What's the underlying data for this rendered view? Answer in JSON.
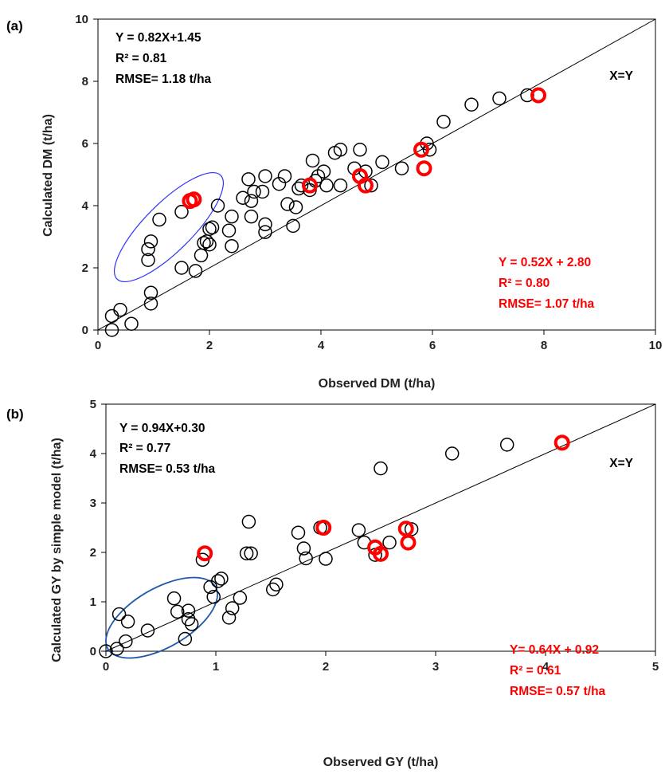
{
  "chart_data": [
    {
      "type": "scatter",
      "panel_label": "(a)",
      "xlabel": "Observed DM (t/ha)",
      "ylabel": "Calculated DM (t/ha)",
      "xlim": [
        0,
        10
      ],
      "ylim": [
        0,
        10
      ],
      "xticks": [
        0,
        2,
        4,
        6,
        8,
        10
      ],
      "yticks": [
        0,
        2,
        4,
        6,
        8,
        10
      ],
      "grid": false,
      "reference_line": {
        "label": "X=Y",
        "slope": 1,
        "intercept": 0
      },
      "annotations": [
        {
          "lines": [
            "Y = 0.82X+1.45",
            "R² = 0.81",
            "RMSE= 1.18 t/ha"
          ],
          "color": "#000000",
          "position": "top-left"
        },
        {
          "lines": [
            "Y = 0.52X + 2.80",
            "R² = 0.80",
            "RMSE= 1.07 t/ha"
          ],
          "color": "#ff0000",
          "position": "bottom-right"
        }
      ],
      "highlight_ellipse": {
        "color": "#3030ff",
        "center": [
          1.27,
          3.3
        ],
        "description_units": "data"
      },
      "series": [
        {
          "color": "#000000",
          "points": [
            [
              0.25,
              0.0
            ],
            [
              0.25,
              0.45
            ],
            [
              0.4,
              0.65
            ],
            [
              0.6,
              0.2
            ],
            [
              0.95,
              0.85
            ],
            [
              0.95,
              1.2
            ],
            [
              0.9,
              2.25
            ],
            [
              0.9,
              2.6
            ],
            [
              0.95,
              2.85
            ],
            [
              1.1,
              3.55
            ],
            [
              1.5,
              2.0
            ],
            [
              1.5,
              3.8
            ],
            [
              1.75,
              1.9
            ],
            [
              1.85,
              2.4
            ],
            [
              1.9,
              2.8
            ],
            [
              1.95,
              2.85
            ],
            [
              2.0,
              2.75
            ],
            [
              2.0,
              3.25
            ],
            [
              2.05,
              3.3
            ],
            [
              2.15,
              4.0
            ],
            [
              2.4,
              2.7
            ],
            [
              2.35,
              3.2
            ],
            [
              2.4,
              3.65
            ],
            [
              2.6,
              4.25
            ],
            [
              2.7,
              4.85
            ],
            [
              2.75,
              3.65
            ],
            [
              2.75,
              4.15
            ],
            [
              2.8,
              4.45
            ],
            [
              2.95,
              4.45
            ],
            [
              3.0,
              3.15
            ],
            [
              3.0,
              3.4
            ],
            [
              3.0,
              4.95
            ],
            [
              3.25,
              4.7
            ],
            [
              3.35,
              4.95
            ],
            [
              3.4,
              4.05
            ],
            [
              3.5,
              3.35
            ],
            [
              3.55,
              3.95
            ],
            [
              3.6,
              4.55
            ],
            [
              3.65,
              4.65
            ],
            [
              3.8,
              4.5
            ],
            [
              3.85,
              5.45
            ],
            [
              3.9,
              4.8
            ],
            [
              3.95,
              4.95
            ],
            [
              4.05,
              5.1
            ],
            [
              4.1,
              4.65
            ],
            [
              4.25,
              5.7
            ],
            [
              4.35,
              5.8
            ],
            [
              4.35,
              4.65
            ],
            [
              4.6,
              5.2
            ],
            [
              4.7,
              5.8
            ],
            [
              4.8,
              5.1
            ],
            [
              4.9,
              4.65
            ],
            [
              5.1,
              5.4
            ],
            [
              5.45,
              5.2
            ],
            [
              5.9,
              6.0
            ],
            [
              5.95,
              5.8
            ],
            [
              6.2,
              6.7
            ],
            [
              6.7,
              7.25
            ],
            [
              7.2,
              7.45
            ],
            [
              7.7,
              7.55
            ]
          ]
        },
        {
          "color": "#ff0000",
          "points": [
            [
              1.65,
              4.15
            ],
            [
              1.72,
              4.2
            ],
            [
              3.8,
              4.65
            ],
            [
              4.7,
              4.95
            ],
            [
              4.8,
              4.65
            ],
            [
              5.8,
              5.8
            ],
            [
              5.85,
              5.2
            ],
            [
              7.9,
              7.55
            ]
          ]
        }
      ]
    },
    {
      "type": "scatter",
      "panel_label": "(b)",
      "xlabel": "Observed GY (t/ha)",
      "ylabel": "Calculated GY by simple model (t/ha)",
      "xlim": [
        0,
        5
      ],
      "ylim": [
        0,
        5
      ],
      "xticks": [
        0,
        1,
        2,
        3,
        4,
        5
      ],
      "yticks": [
        0,
        1,
        2,
        3,
        4,
        5
      ],
      "grid": false,
      "reference_line": {
        "label": "X=Y",
        "slope": 1,
        "intercept": 0
      },
      "annotations": [
        {
          "lines": [
            "Y = 0.94X+0.30",
            "R² = 0.77",
            "RMSE= 0.53 t/ha"
          ],
          "color": "#000000",
          "position": "top-left"
        },
        {
          "lines": [
            "Y= 0.64X + 0.92",
            "R² = 0.61",
            "RMSE= 0.57 t/ha"
          ],
          "color": "#ff0000",
          "position": "bottom-right"
        }
      ],
      "highlight_ellipse": {
        "color": "#1f5aa8",
        "center": [
          0.5,
          1.4
        ],
        "description_units": "data"
      },
      "series": [
        {
          "color": "#000000",
          "points": [
            [
              0.0,
              0.0
            ],
            [
              0.1,
              0.05
            ],
            [
              0.18,
              0.2
            ],
            [
              0.12,
              0.75
            ],
            [
              0.2,
              0.6
            ],
            [
              0.38,
              0.42
            ],
            [
              0.62,
              1.07
            ],
            [
              0.65,
              0.8
            ],
            [
              0.72,
              0.25
            ],
            [
              0.75,
              0.82
            ],
            [
              0.75,
              0.65
            ],
            [
              0.78,
              0.55
            ],
            [
              0.88,
              1.85
            ],
            [
              0.95,
              1.3
            ],
            [
              0.98,
              1.1
            ],
            [
              1.02,
              1.42
            ],
            [
              1.05,
              1.47
            ],
            [
              1.12,
              0.68
            ],
            [
              1.15,
              0.87
            ],
            [
              1.22,
              1.08
            ],
            [
              1.28,
              1.98
            ],
            [
              1.3,
              2.62
            ],
            [
              1.32,
              1.98
            ],
            [
              1.52,
              1.25
            ],
            [
              1.55,
              1.35
            ],
            [
              1.75,
              2.4
            ],
            [
              1.8,
              2.08
            ],
            [
              1.82,
              1.88
            ],
            [
              1.95,
              2.5
            ],
            [
              2.0,
              1.87
            ],
            [
              2.3,
              2.45
            ],
            [
              2.35,
              2.2
            ],
            [
              2.45,
              1.95
            ],
            [
              2.5,
              3.7
            ],
            [
              2.58,
              2.2
            ],
            [
              2.78,
              2.47
            ],
            [
              3.15,
              4.0
            ],
            [
              3.65,
              4.18
            ]
          ]
        },
        {
          "color": "#ff0000",
          "points": [
            [
              0.9,
              1.98
            ],
            [
              1.98,
              2.5
            ],
            [
              2.45,
              2.1
            ],
            [
              2.5,
              1.97
            ],
            [
              2.73,
              2.48
            ],
            [
              2.75,
              2.2
            ],
            [
              4.15,
              4.22
            ]
          ]
        }
      ]
    }
  ]
}
